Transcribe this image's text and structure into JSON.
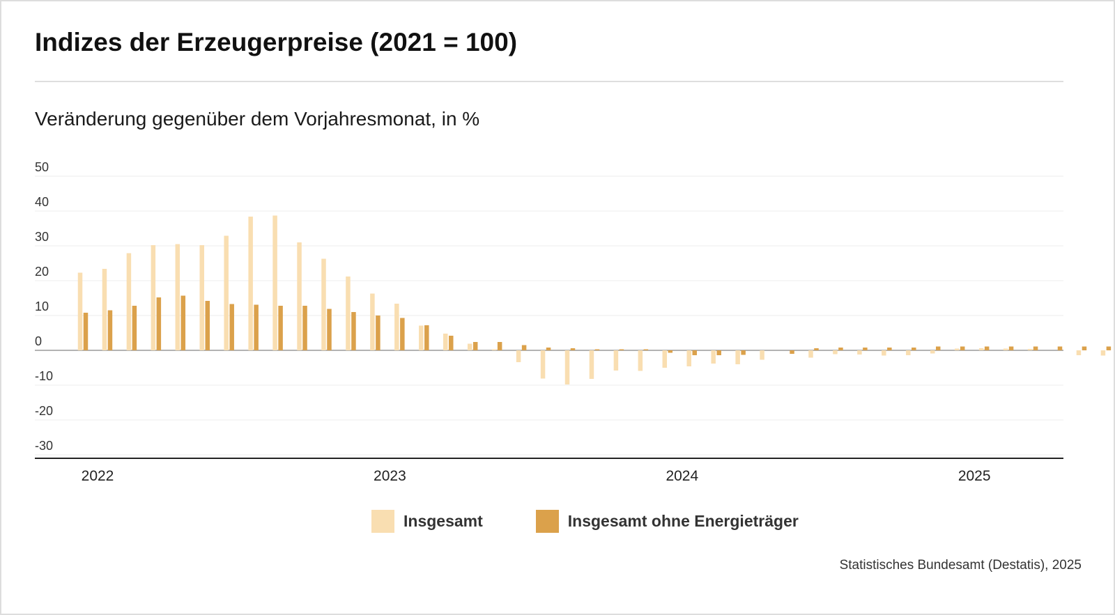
{
  "title": "Indizes der Erzeugerpreise (2021 = 100)",
  "subtitle": "Veränderung gegenüber dem Vorjahresmonat, in %",
  "source": "Statistisches Bundesamt (Destatis), 2025",
  "colors": {
    "insgesamt": "#f9deb1",
    "ohne_energie": "#dba14b",
    "grid": "#ececec",
    "axis": "#222222"
  },
  "chart_data": {
    "type": "bar",
    "title": "",
    "xlabel": "",
    "ylabel": "",
    "ylim": [
      -30,
      50
    ],
    "y_ticks": [
      "50",
      "40",
      "30",
      "20",
      "10",
      "0",
      "-10",
      "-20",
      "-30"
    ],
    "x_tick_labels": [
      "2022",
      "2023",
      "2024",
      "2025"
    ],
    "grid": true,
    "legend_position": "bottom",
    "categories": [
      "2022-01",
      "2022-02",
      "2022-03",
      "2022-04",
      "2022-05",
      "2022-06",
      "2022-07",
      "2022-08",
      "2022-09",
      "2022-10",
      "2022-11",
      "2022-12",
      "2023-01",
      "2023-02",
      "2023-03",
      "2023-04",
      "2023-05",
      "2023-06",
      "2023-07",
      "2023-08",
      "2023-09",
      "2023-10",
      "2023-11",
      "2023-12",
      "2024-01",
      "2024-02",
      "2024-03",
      "2024-04",
      "2024-05",
      "2024-06",
      "2024-07",
      "2024-08",
      "2024-09",
      "2024-10",
      "2024-11",
      "2024-12",
      "2025-01",
      "2025-02",
      "2025-03",
      "2025-04",
      "2025-05",
      "2025-06",
      "2025-07"
    ],
    "series": [
      {
        "name": "Insgesamt",
        "values": [
          22.3,
          23.4,
          27.9,
          30.2,
          30.5,
          30.2,
          32.9,
          38.4,
          38.7,
          31.0,
          26.3,
          21.2,
          16.3,
          13.4,
          7.1,
          4.8,
          1.9,
          0.3,
          -3.4,
          -8.1,
          -9.8,
          -8.2,
          -5.8,
          -5.9,
          -5.0,
          -4.6,
          -3.8,
          -4.0,
          -2.7,
          0.0,
          -2.1,
          -1.1,
          -1.2,
          -1.5,
          -1.4,
          -0.9,
          0.5,
          0.6,
          0.5,
          0.4,
          0.0,
          -1.4,
          -1.5
        ]
      },
      {
        "name": "Insgesamt ohne Energieträger",
        "values": [
          10.8,
          11.5,
          12.8,
          15.2,
          15.7,
          14.2,
          13.3,
          13.1,
          12.8,
          12.8,
          11.9,
          11.0,
          10.0,
          9.3,
          7.2,
          4.2,
          2.4,
          2.4,
          1.5,
          0.8,
          0.6,
          0.3,
          0.3,
          0.3,
          -0.7,
          -1.4,
          -1.4,
          -1.3,
          0.0,
          -1.0,
          0.6,
          0.8,
          0.8,
          0.8,
          0.8,
          1.1,
          1.1,
          1.1,
          1.1,
          1.1,
          1.1,
          1.1,
          1.1
        ]
      }
    ]
  },
  "legend": {
    "items": [
      {
        "label": "Insgesamt"
      },
      {
        "label": "Insgesamt ohne Energieträger"
      }
    ]
  }
}
